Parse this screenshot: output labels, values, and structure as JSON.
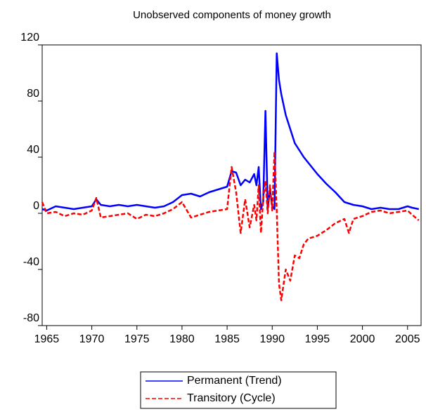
{
  "chart_data": {
    "type": "line",
    "title": "Unobserved components of money growth",
    "x": [
      1964.5,
      1965,
      1966,
      1967,
      1968,
      1969,
      1970,
      1970.5,
      1971,
      1972,
      1973,
      1974,
      1975,
      1976,
      1977,
      1978,
      1979,
      1980,
      1981,
      1982,
      1983,
      1984,
      1985,
      1985.5,
      1986,
      1986.5,
      1987,
      1987.5,
      1988,
      1988.25,
      1988.5,
      1988.75,
      1989,
      1989.25,
      1989.5,
      1989.75,
      1990,
      1990.25,
      1990.5,
      1990.75,
      1991,
      1991.5,
      1992,
      1992.5,
      1993,
      1993.5,
      1994,
      1995,
      1996,
      1997,
      1998,
      1998.5,
      1999,
      2000,
      2001,
      2002,
      2003,
      2004,
      2005,
      2005.5,
      2006.25
    ],
    "series": [
      {
        "name": "Permanent (Trend)",
        "color": "#0000ff",
        "dash": false,
        "values": [
          3,
          2,
          5,
          4,
          3,
          4,
          5,
          10,
          6,
          5,
          6,
          5,
          6,
          5,
          4,
          5,
          8,
          13,
          14,
          12,
          15,
          17,
          19,
          30,
          29,
          20,
          24,
          22,
          28,
          20,
          33,
          3,
          8,
          73,
          3,
          17,
          5,
          3,
          114,
          95,
          85,
          70,
          60,
          50,
          45,
          40,
          36,
          28,
          21,
          15,
          8,
          7,
          6,
          5,
          3,
          4,
          3,
          3,
          5,
          4,
          3
        ]
      },
      {
        "name": "Transitory (Cycle)",
        "color": "#ff0000",
        "dash": true,
        "values": [
          8,
          0,
          1,
          -2,
          0,
          -1,
          2,
          11,
          -3,
          -2,
          -1,
          0,
          -4,
          -1,
          -2,
          0,
          3,
          8,
          -3,
          -1,
          1,
          2,
          3,
          33,
          15,
          -14,
          10,
          -10,
          6,
          -5,
          20,
          -14,
          10,
          23,
          0,
          20,
          2,
          44,
          2,
          -50,
          -62,
          -40,
          -48,
          -30,
          -32,
          -22,
          -18,
          -16,
          -12,
          -7,
          -4,
          -14,
          -4,
          -2,
          1,
          2,
          0,
          1,
          2,
          -1,
          -5
        ]
      }
    ],
    "xlim": [
      1964.5,
      2006.5
    ],
    "xticks": [
      1965,
      1970,
      1975,
      1980,
      1985,
      1990,
      1995,
      2000,
      2005
    ],
    "ylim": [
      -80,
      120
    ],
    "yticks": [
      -80,
      -40,
      0,
      40,
      80,
      120
    ]
  }
}
